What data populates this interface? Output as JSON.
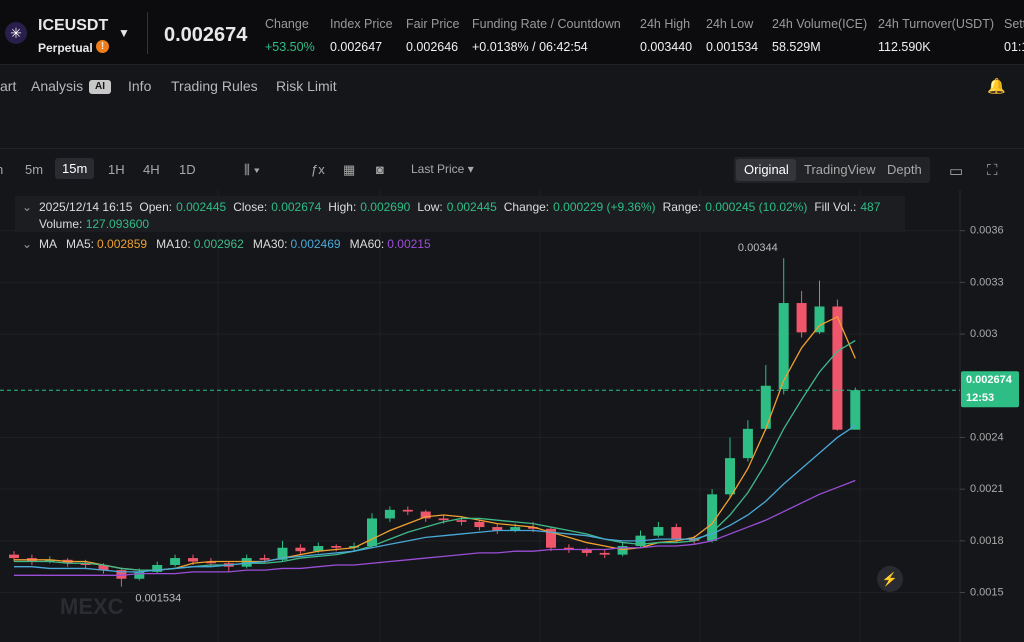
{
  "header": {
    "symbol": "ICEUSDT",
    "contract": "Perpetual",
    "badge": "!",
    "price": "0.002674",
    "stats": [
      {
        "label": "Change",
        "value": "+53.50%"
      },
      {
        "label": "Index Price",
        "value": "0.002647"
      },
      {
        "label": "Fair Price",
        "value": "0.002646"
      },
      {
        "label": "Funding Rate / Countdown",
        "value": "+0.0138% / 06:42:54"
      },
      {
        "label": "24h High",
        "value": "0.003440"
      },
      {
        "label": "24h Low",
        "value": "0.001534"
      },
      {
        "label": "24h Volume(ICE)",
        "value": "58.529M"
      },
      {
        "label": "24h Turnover(USDT)",
        "value": "112.590K"
      },
      {
        "label": "Sett",
        "value": "01:1"
      }
    ]
  },
  "tabs": [
    "art",
    "Analysis",
    "Info",
    "Trading Rules",
    "Risk Limit"
  ],
  "ai_badge": "AI",
  "toolbar": {
    "intervals": [
      "n",
      "5m",
      "15m",
      "1H",
      "4H",
      "1D"
    ],
    "price_type": "Last Price",
    "views": [
      "Original",
      "TradingView",
      "Depth"
    ]
  },
  "chart_data": {
    "type": "candlestick",
    "info": {
      "date": "2025/12/14 16:15",
      "items": [
        {
          "label": "Open:",
          "value": "0.002445"
        },
        {
          "label": "Close:",
          "value": "0.002674"
        },
        {
          "label": "High:",
          "value": "0.002690"
        },
        {
          "label": "Low:",
          "value": "0.002445"
        },
        {
          "label": "Change:",
          "value": "0.000229 (+9.36%)"
        },
        {
          "label": "Range:",
          "value": "0.000245 (10.02%)"
        },
        {
          "label": "Fill Vol.:",
          "value": "487"
        }
      ],
      "volume_label": "Volume:",
      "volume": "127.093600"
    },
    "ma_label": "MA",
    "up_color": "#2ebd85",
    "down_color": "#f0566b",
    "candles": [
      [
        0.00172,
        0.00174,
        0.00168,
        0.0017
      ],
      [
        0.0017,
        0.00172,
        0.00166,
        0.00168
      ],
      [
        0.00168,
        0.00171,
        0.00167,
        0.00169
      ],
      [
        0.00169,
        0.0017,
        0.00165,
        0.00167
      ],
      [
        0.00167,
        0.00169,
        0.00164,
        0.00166
      ],
      [
        0.00166,
        0.00167,
        0.00161,
        0.00163
      ],
      [
        0.00163,
        0.00164,
        0.001534,
        0.00158
      ],
      [
        0.00158,
        0.00164,
        0.00157,
        0.00162
      ],
      [
        0.00162,
        0.00168,
        0.00161,
        0.00166
      ],
      [
        0.00166,
        0.00172,
        0.00165,
        0.0017
      ],
      [
        0.0017,
        0.00172,
        0.00166,
        0.00168
      ],
      [
        0.00168,
        0.0017,
        0.00165,
        0.00167
      ],
      [
        0.00167,
        0.00168,
        0.00162,
        0.00165
      ],
      [
        0.00165,
        0.00172,
        0.00164,
        0.0017
      ],
      [
        0.0017,
        0.00172,
        0.00167,
        0.00169
      ],
      [
        0.00169,
        0.0018,
        0.00168,
        0.00176
      ],
      [
        0.00176,
        0.00178,
        0.00172,
        0.00174
      ],
      [
        0.00174,
        0.00179,
        0.00173,
        0.00177
      ],
      [
        0.00177,
        0.00178,
        0.00174,
        0.00176
      ],
      [
        0.00176,
        0.00179,
        0.00174,
        0.00177
      ],
      [
        0.00177,
        0.00196,
        0.00176,
        0.00193
      ],
      [
        0.00193,
        0.002,
        0.00191,
        0.00198
      ],
      [
        0.00198,
        0.002,
        0.00195,
        0.00197
      ],
      [
        0.00197,
        0.00198,
        0.00191,
        0.00193
      ],
      [
        0.00193,
        0.00195,
        0.0019,
        0.00192
      ],
      [
        0.00192,
        0.00194,
        0.00189,
        0.00191
      ],
      [
        0.00191,
        0.00192,
        0.00186,
        0.00188
      ],
      [
        0.00188,
        0.0019,
        0.00184,
        0.00186
      ],
      [
        0.00186,
        0.0019,
        0.00185,
        0.00188
      ],
      [
        0.00188,
        0.00191,
        0.00185,
        0.00187
      ],
      [
        0.00187,
        0.00188,
        0.00174,
        0.00176
      ],
      [
        0.00176,
        0.00178,
        0.00173,
        0.00175
      ],
      [
        0.00175,
        0.00176,
        0.00171,
        0.00173
      ],
      [
        0.00173,
        0.00175,
        0.0017,
        0.00172
      ],
      [
        0.00172,
        0.00179,
        0.00171,
        0.00177
      ],
      [
        0.00177,
        0.00186,
        0.00176,
        0.00183
      ],
      [
        0.00183,
        0.00191,
        0.00182,
        0.00188
      ],
      [
        0.00188,
        0.0019,
        0.00179,
        0.00181
      ],
      [
        0.00181,
        0.00183,
        0.00178,
        0.0018
      ],
      [
        0.0018,
        0.0021,
        0.00179,
        0.00207
      ],
      [
        0.00207,
        0.0024,
        0.00205,
        0.00228
      ],
      [
        0.00228,
        0.0025,
        0.00226,
        0.00245
      ],
      [
        0.00245,
        0.00282,
        0.00244,
        0.0027
      ],
      [
        0.00268,
        0.00344,
        0.00265,
        0.00318
      ],
      [
        0.00318,
        0.00325,
        0.00298,
        0.00301
      ],
      [
        0.00301,
        0.00331,
        0.003,
        0.00316
      ],
      [
        0.00316,
        0.0032,
        0.00244,
        0.002445
      ],
      [
        0.002445,
        0.00269,
        0.002445,
        0.002674
      ]
    ],
    "series": [
      {
        "name": "MA5:",
        "color": "#f0a030",
        "values": [
          0.00169,
          0.00169,
          0.00169,
          0.00168,
          0.00168,
          0.00166,
          0.00164,
          0.00163,
          0.00163,
          0.00164,
          0.00167,
          0.00168,
          0.00168,
          0.00168,
          0.00168,
          0.0017,
          0.00172,
          0.00174,
          0.00175,
          0.00176,
          0.00181,
          0.00186,
          0.0019,
          0.00194,
          0.00195,
          0.00194,
          0.00192,
          0.0019,
          0.00189,
          0.00188,
          0.00185,
          0.00182,
          0.00179,
          0.00177,
          0.00175,
          0.00176,
          0.00179,
          0.0018,
          0.00182,
          0.0019,
          0.00205,
          0.00222,
          0.00245,
          0.00273,
          0.00292,
          0.00305,
          0.0031,
          0.002859
        ]
      },
      {
        "name": "MA10:",
        "color": "#3fb98a",
        "values": [
          0.00168,
          0.00168,
          0.00168,
          0.00167,
          0.00167,
          0.00166,
          0.00164,
          0.00163,
          0.00163,
          0.00164,
          0.00165,
          0.00166,
          0.00166,
          0.00167,
          0.00167,
          0.00168,
          0.0017,
          0.00171,
          0.00172,
          0.00174,
          0.00177,
          0.00181,
          0.00185,
          0.00188,
          0.00191,
          0.00193,
          0.00193,
          0.00192,
          0.00191,
          0.0019,
          0.00188,
          0.00186,
          0.00184,
          0.00181,
          0.00179,
          0.00178,
          0.00179,
          0.00179,
          0.0018,
          0.00185,
          0.00195,
          0.00208,
          0.00225,
          0.00245,
          0.00262,
          0.00278,
          0.0029,
          0.002962
        ]
      },
      {
        "name": "MA30:",
        "color": "#4aa8d8",
        "values": [
          0.00165,
          0.00165,
          0.00164,
          0.00164,
          0.00164,
          0.00163,
          0.00162,
          0.00162,
          0.00163,
          0.00164,
          0.00165,
          0.00165,
          0.00166,
          0.00167,
          0.00168,
          0.0017,
          0.00171,
          0.00172,
          0.00173,
          0.00174,
          0.00176,
          0.00178,
          0.0018,
          0.00182,
          0.00183,
          0.00184,
          0.00185,
          0.00186,
          0.00186,
          0.00186,
          0.00185,
          0.00184,
          0.00183,
          0.00181,
          0.0018,
          0.0018,
          0.00181,
          0.00181,
          0.00181,
          0.00184,
          0.00189,
          0.00195,
          0.00203,
          0.00213,
          0.00222,
          0.00231,
          0.0024,
          0.002469
        ]
      },
      {
        "name": "MA60:",
        "color": "#9b4fd8",
        "values": [
          0.0016,
          0.0016,
          0.0016,
          0.0016,
          0.0016,
          0.0016,
          0.0016,
          0.00161,
          0.00161,
          0.00161,
          0.00162,
          0.00162,
          0.00162,
          0.00163,
          0.00163,
          0.00164,
          0.00164,
          0.00165,
          0.00166,
          0.00166,
          0.00167,
          0.00168,
          0.00169,
          0.0017,
          0.00171,
          0.00172,
          0.00173,
          0.00173,
          0.00174,
          0.00174,
          0.00175,
          0.00175,
          0.00175,
          0.00175,
          0.00176,
          0.00176,
          0.00177,
          0.00177,
          0.00178,
          0.0018,
          0.00184,
          0.00188,
          0.00192,
          0.00197,
          0.00202,
          0.00207,
          0.00211,
          0.00215
        ]
      }
    ],
    "ylim": [
      0.001213,
      0.003836
    ],
    "yticks": [
      0.0015,
      0.0018,
      0.0021,
      0.0024,
      0.003,
      0.0033,
      0.0036
    ],
    "grid": true,
    "current_price": 0.002674,
    "countdown": "12:53",
    "watermark": "MEXC"
  }
}
